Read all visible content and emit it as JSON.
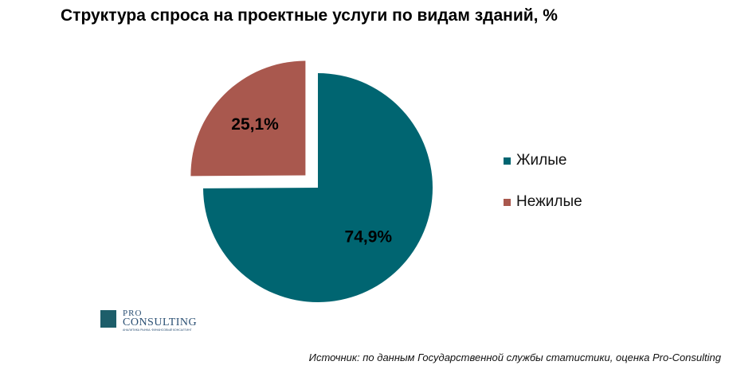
{
  "chart_data": {
    "type": "pie",
    "title": "Структура спроса на проектные услуги по видам зданий, %",
    "categories": [
      "Жилые",
      "Нежилые"
    ],
    "values": [
      74.9,
      25.1
    ],
    "data_labels": [
      "74,9%",
      "25,1%"
    ],
    "colors": [
      "#006571",
      "#a9584e"
    ],
    "exploded": [
      false,
      true
    ],
    "legend_position": "right"
  },
  "logo": {
    "pro": "PRO",
    "consulting": "CONSULTING",
    "tagline": "АНАЛИТИКА РЫНКА. ФИНАНСОВЫЙ КОНСАЛТИНГ"
  },
  "source_note": "Источник: по данным Государственной службы статистики, оценка Pro-Consulting"
}
